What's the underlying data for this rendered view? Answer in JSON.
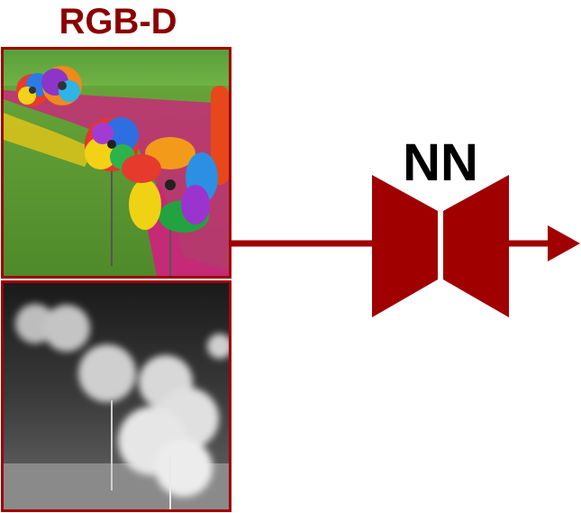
{
  "title": "RGB-D",
  "network_label": "NN",
  "colors": {
    "accent": "#a00000",
    "title": "#8b0000",
    "label": "#000000"
  },
  "icons": {
    "rgb_image": "colorful-pinwheels-photo",
    "depth_image": "grayscale-depth-map",
    "network": "bowtie-encoder-decoder-icon",
    "output": "arrow-right-icon"
  }
}
